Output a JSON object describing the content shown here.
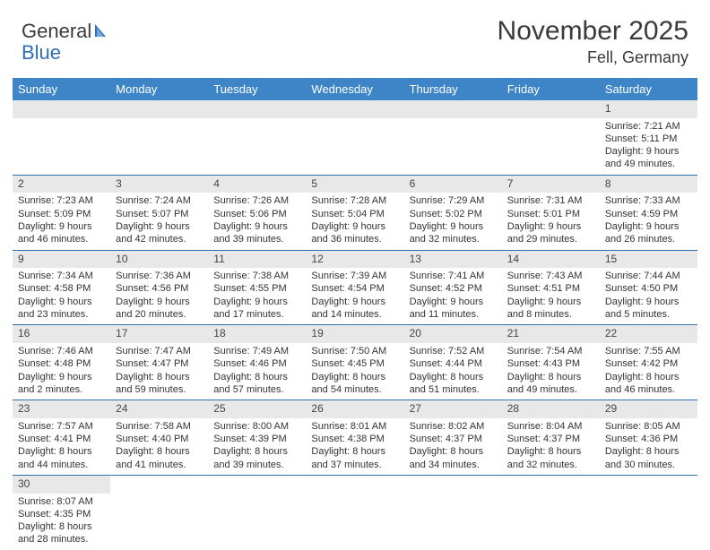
{
  "brand": {
    "part1": "General",
    "part2": "Blue"
  },
  "title": "November 2025",
  "subtitle": "Fell, Germany",
  "colors": {
    "header_bg": "#3d85c6",
    "header_fg": "#ffffff",
    "daynum_bg": "#e8e8e8",
    "border": "#2e6fb4",
    "text": "#333333",
    "brand_blue": "#2e6fb4"
  },
  "day_labels": [
    "Sunday",
    "Monday",
    "Tuesday",
    "Wednesday",
    "Thursday",
    "Friday",
    "Saturday"
  ],
  "weeks": [
    [
      null,
      null,
      null,
      null,
      null,
      null,
      {
        "n": "1",
        "sr": "Sunrise: 7:21 AM",
        "ss": "Sunset: 5:11 PM",
        "d1": "Daylight: 9 hours",
        "d2": "and 49 minutes."
      }
    ],
    [
      {
        "n": "2",
        "sr": "Sunrise: 7:23 AM",
        "ss": "Sunset: 5:09 PM",
        "d1": "Daylight: 9 hours",
        "d2": "and 46 minutes."
      },
      {
        "n": "3",
        "sr": "Sunrise: 7:24 AM",
        "ss": "Sunset: 5:07 PM",
        "d1": "Daylight: 9 hours",
        "d2": "and 42 minutes."
      },
      {
        "n": "4",
        "sr": "Sunrise: 7:26 AM",
        "ss": "Sunset: 5:06 PM",
        "d1": "Daylight: 9 hours",
        "d2": "and 39 minutes."
      },
      {
        "n": "5",
        "sr": "Sunrise: 7:28 AM",
        "ss": "Sunset: 5:04 PM",
        "d1": "Daylight: 9 hours",
        "d2": "and 36 minutes."
      },
      {
        "n": "6",
        "sr": "Sunrise: 7:29 AM",
        "ss": "Sunset: 5:02 PM",
        "d1": "Daylight: 9 hours",
        "d2": "and 32 minutes."
      },
      {
        "n": "7",
        "sr": "Sunrise: 7:31 AM",
        "ss": "Sunset: 5:01 PM",
        "d1": "Daylight: 9 hours",
        "d2": "and 29 minutes."
      },
      {
        "n": "8",
        "sr": "Sunrise: 7:33 AM",
        "ss": "Sunset: 4:59 PM",
        "d1": "Daylight: 9 hours",
        "d2": "and 26 minutes."
      }
    ],
    [
      {
        "n": "9",
        "sr": "Sunrise: 7:34 AM",
        "ss": "Sunset: 4:58 PM",
        "d1": "Daylight: 9 hours",
        "d2": "and 23 minutes."
      },
      {
        "n": "10",
        "sr": "Sunrise: 7:36 AM",
        "ss": "Sunset: 4:56 PM",
        "d1": "Daylight: 9 hours",
        "d2": "and 20 minutes."
      },
      {
        "n": "11",
        "sr": "Sunrise: 7:38 AM",
        "ss": "Sunset: 4:55 PM",
        "d1": "Daylight: 9 hours",
        "d2": "and 17 minutes."
      },
      {
        "n": "12",
        "sr": "Sunrise: 7:39 AM",
        "ss": "Sunset: 4:54 PM",
        "d1": "Daylight: 9 hours",
        "d2": "and 14 minutes."
      },
      {
        "n": "13",
        "sr": "Sunrise: 7:41 AM",
        "ss": "Sunset: 4:52 PM",
        "d1": "Daylight: 9 hours",
        "d2": "and 11 minutes."
      },
      {
        "n": "14",
        "sr": "Sunrise: 7:43 AM",
        "ss": "Sunset: 4:51 PM",
        "d1": "Daylight: 9 hours",
        "d2": "and 8 minutes."
      },
      {
        "n": "15",
        "sr": "Sunrise: 7:44 AM",
        "ss": "Sunset: 4:50 PM",
        "d1": "Daylight: 9 hours",
        "d2": "and 5 minutes."
      }
    ],
    [
      {
        "n": "16",
        "sr": "Sunrise: 7:46 AM",
        "ss": "Sunset: 4:48 PM",
        "d1": "Daylight: 9 hours",
        "d2": "and 2 minutes."
      },
      {
        "n": "17",
        "sr": "Sunrise: 7:47 AM",
        "ss": "Sunset: 4:47 PM",
        "d1": "Daylight: 8 hours",
        "d2": "and 59 minutes."
      },
      {
        "n": "18",
        "sr": "Sunrise: 7:49 AM",
        "ss": "Sunset: 4:46 PM",
        "d1": "Daylight: 8 hours",
        "d2": "and 57 minutes."
      },
      {
        "n": "19",
        "sr": "Sunrise: 7:50 AM",
        "ss": "Sunset: 4:45 PM",
        "d1": "Daylight: 8 hours",
        "d2": "and 54 minutes."
      },
      {
        "n": "20",
        "sr": "Sunrise: 7:52 AM",
        "ss": "Sunset: 4:44 PM",
        "d1": "Daylight: 8 hours",
        "d2": "and 51 minutes."
      },
      {
        "n": "21",
        "sr": "Sunrise: 7:54 AM",
        "ss": "Sunset: 4:43 PM",
        "d1": "Daylight: 8 hours",
        "d2": "and 49 minutes."
      },
      {
        "n": "22",
        "sr": "Sunrise: 7:55 AM",
        "ss": "Sunset: 4:42 PM",
        "d1": "Daylight: 8 hours",
        "d2": "and 46 minutes."
      }
    ],
    [
      {
        "n": "23",
        "sr": "Sunrise: 7:57 AM",
        "ss": "Sunset: 4:41 PM",
        "d1": "Daylight: 8 hours",
        "d2": "and 44 minutes."
      },
      {
        "n": "24",
        "sr": "Sunrise: 7:58 AM",
        "ss": "Sunset: 4:40 PM",
        "d1": "Daylight: 8 hours",
        "d2": "and 41 minutes."
      },
      {
        "n": "25",
        "sr": "Sunrise: 8:00 AM",
        "ss": "Sunset: 4:39 PM",
        "d1": "Daylight: 8 hours",
        "d2": "and 39 minutes."
      },
      {
        "n": "26",
        "sr": "Sunrise: 8:01 AM",
        "ss": "Sunset: 4:38 PM",
        "d1": "Daylight: 8 hours",
        "d2": "and 37 minutes."
      },
      {
        "n": "27",
        "sr": "Sunrise: 8:02 AM",
        "ss": "Sunset: 4:37 PM",
        "d1": "Daylight: 8 hours",
        "d2": "and 34 minutes."
      },
      {
        "n": "28",
        "sr": "Sunrise: 8:04 AM",
        "ss": "Sunset: 4:37 PM",
        "d1": "Daylight: 8 hours",
        "d2": "and 32 minutes."
      },
      {
        "n": "29",
        "sr": "Sunrise: 8:05 AM",
        "ss": "Sunset: 4:36 PM",
        "d1": "Daylight: 8 hours",
        "d2": "and 30 minutes."
      }
    ],
    [
      {
        "n": "30",
        "sr": "Sunrise: 8:07 AM",
        "ss": "Sunset: 4:35 PM",
        "d1": "Daylight: 8 hours",
        "d2": "and 28 minutes."
      },
      null,
      null,
      null,
      null,
      null,
      null
    ]
  ]
}
